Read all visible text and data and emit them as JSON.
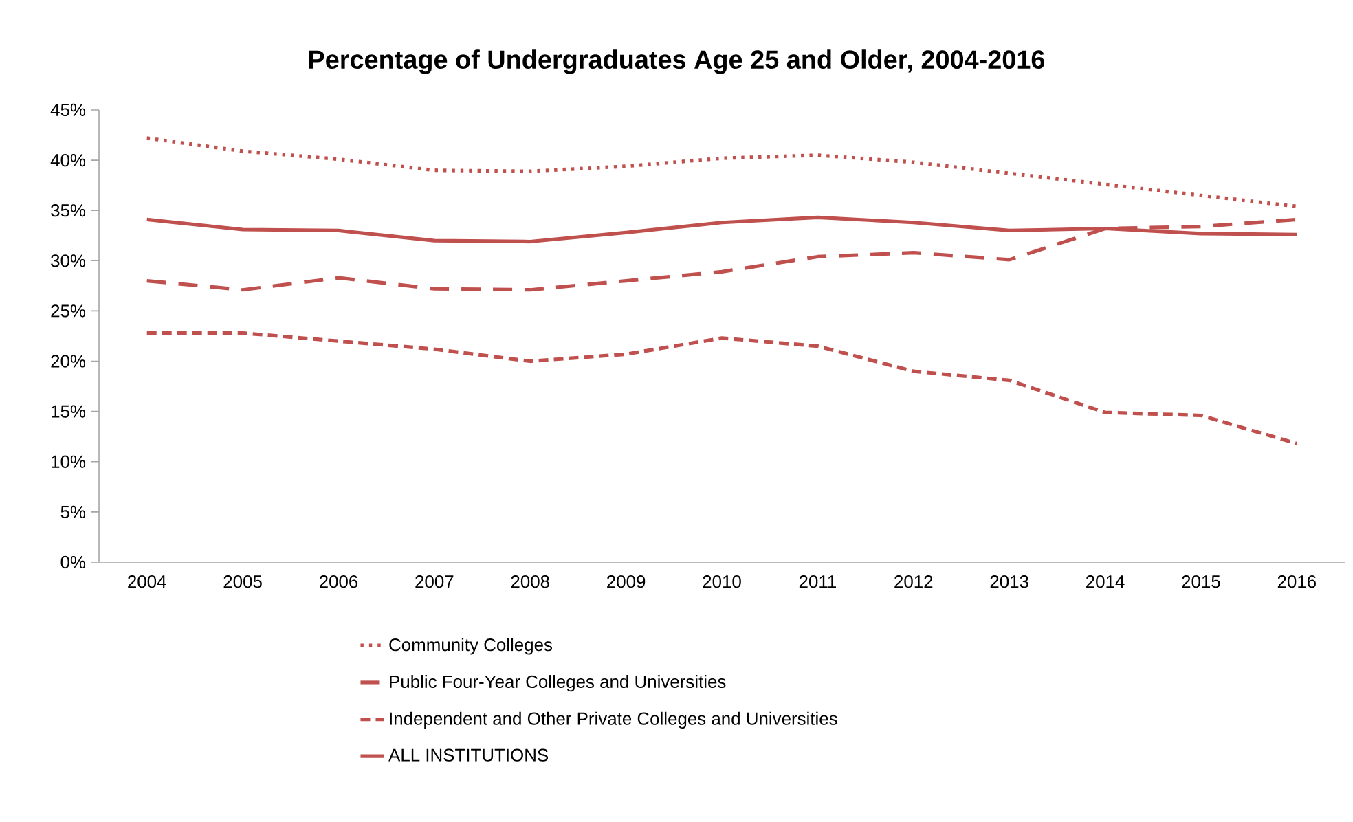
{
  "chart_data": {
    "type": "line",
    "title": "Percentage of Undergraduates Age 25 and Older, 2004-2016",
    "categories": [
      "2004",
      "2005",
      "2006",
      "2007",
      "2008",
      "2009",
      "2010",
      "2011",
      "2012",
      "2013",
      "2014",
      "2015",
      "2016"
    ],
    "series": [
      {
        "name": "Community Colleges",
        "color": "#c0504d",
        "line_style": "dotted",
        "values": [
          42.2,
          40.9,
          40.1,
          39.0,
          38.9,
          39.4,
          40.2,
          40.5,
          39.8,
          38.7,
          37.6,
          36.5,
          35.4
        ]
      },
      {
        "name": "Public Four-Year Colleges and Universities",
        "color": "#c0504d",
        "line_style": "dashed",
        "values": [
          28.0,
          27.1,
          28.3,
          27.2,
          27.1,
          28.0,
          28.9,
          30.4,
          30.8,
          30.1,
          33.2,
          33.4,
          34.1
        ]
      },
      {
        "name": "Independent and Other Private Colleges and Universities",
        "color": "#c0504d",
        "line_style": "dashed",
        "values": [
          22.8,
          22.8,
          22.0,
          21.2,
          20.0,
          20.7,
          22.3,
          21.5,
          19.0,
          18.1,
          14.9,
          14.6,
          11.8
        ]
      },
      {
        "name": "ALL INSTITUTIONS",
        "color": "#c0504d",
        "line_style": "solid",
        "values": [
          34.1,
          33.1,
          33.0,
          32.0,
          31.9,
          32.8,
          33.8,
          34.3,
          33.8,
          33.0,
          33.2,
          32.7,
          32.6
        ]
      }
    ],
    "ylim": [
      0,
      45
    ],
    "yticks": [
      {
        "value": 0,
        "label": "0%"
      },
      {
        "value": 5,
        "label": "5%"
      },
      {
        "value": 10,
        "label": "10%"
      },
      {
        "value": 15,
        "label": "15%"
      },
      {
        "value": 20,
        "label": "20%"
      },
      {
        "value": 25,
        "label": "25%"
      },
      {
        "value": 30,
        "label": "30%"
      },
      {
        "value": 35,
        "label": "35%"
      },
      {
        "value": 40,
        "label": "40%"
      },
      {
        "value": 45,
        "label": "45%"
      }
    ],
    "grid": false,
    "legend": "bottom",
    "marker": "none"
  }
}
